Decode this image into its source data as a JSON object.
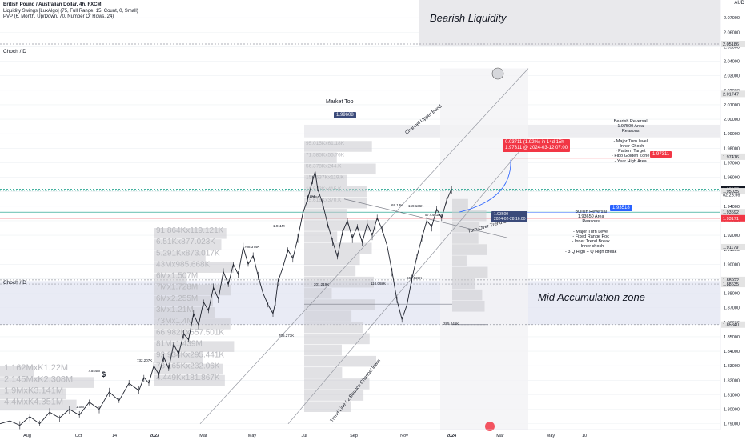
{
  "header": {
    "title": "British Pound / Australian Dollar, 4h, FXCM",
    "indicator_1": "Liquidity Swings [LuxAlgo] (75, Full Range, 15, Count, 0, Small)",
    "indicator_2": "PVP (6, Month, Up/Down, 70, Number Of Rows, 24)"
  },
  "currency": "AUD",
  "annotations": {
    "bearish_liquidity": "Bearish Liquidity",
    "mid_accumulation": "Mid Accumulation zone",
    "choch_top": "Choch / D",
    "choch_mid": "Choch / D",
    "market_top": "Market Top",
    "market_top_tag": "1.99608",
    "channel_upper": "Channel Upper Bond",
    "trend_over": "Turn-Over Trend Line",
    "trend_lower": "Trend Line / 2 Bounce Channel lower",
    "dollar": "$",
    "measure_line1": "0.03711 (1.92%) in 14d 15h",
    "measure_line2": "1.97311 @ 2024-03-12 07:00",
    "bearish_reversal": "Bearish Reversal\n1.97500 Area\nReasons\n\n- Major Turn level\n- Inner Choch\n- Pattern Target\n- Fibo Golden Zone\n- Year High Area",
    "bearish_tag": "1.97311",
    "bullish_reversal": "Bullish Reversal\n1.93650 Area\nReasons\n\n- Major Turn Level\n- Fixed Range Poc\n- Inner Trend Break\n- Inner choch\n- 3 Q High + Q High Break",
    "bullish_tag": "1.93518",
    "entry_tag_1": "1.93600",
    "entry_tag_2": "2024-02-28 16:00"
  },
  "colors": {
    "grid": "#eef0f3",
    "candle": "#1e222d",
    "channel": "#9598a1",
    "bearish_zone": "#e9e9ec",
    "accum_zone": "#e3e6f3",
    "volume_profile": "#c8c9ce",
    "red": "#f23645",
    "blue": "#2962ff",
    "navy": "#3a4a7a",
    "green": "#089981"
  },
  "chart_data": {
    "type": "line",
    "title": "British Pound / Australian Dollar, 4h, FXCM",
    "y_axis_range": [
      1.786,
      2.08
    ],
    "y_ticks": [
      "2.07000",
      "2.06000",
      "2.05000",
      "2.04000",
      "2.03000",
      "2.02000",
      "2.01000",
      "2.00000",
      "1.99000",
      "1.98000",
      "1.97000",
      "1.96000",
      "1.95000",
      "1.94000",
      "1.93000",
      "1.92000",
      "1.91000",
      "1.90000",
      "1.89000",
      "1.88000",
      "1.87000",
      "1.86000",
      "1.85000",
      "1.84000",
      "1.83000",
      "1.82000",
      "1.81000",
      "1.80000",
      "1.79000"
    ],
    "y_tick_values": [
      2.07,
      2.06,
      2.05,
      2.04,
      2.03,
      2.02,
      2.01,
      2.0,
      1.99,
      1.98,
      1.97,
      1.96,
      1.95,
      1.94,
      1.93,
      1.92,
      1.91,
      1.9,
      1.89,
      1.88,
      1.87,
      1.86,
      1.85,
      1.84,
      1.83,
      1.82,
      1.81,
      1.8,
      1.79
    ],
    "x_ticks": [
      "Aug",
      "Oct",
      "14",
      "2023",
      "Mar",
      "May",
      "Jul",
      "Sep",
      "Nov",
      "2024",
      "Mar",
      "May",
      "10"
    ],
    "price_labels": [
      {
        "text": "2.05186",
        "value": 2.05186,
        "color": "#e3e3e3",
        "fg": "#131722"
      },
      {
        "text": "2.01747",
        "value": 2.01747,
        "color": "#e3e3e3",
        "fg": "#131722"
      },
      {
        "text": "1.97416",
        "value": 1.97416,
        "color": "#e3e3e3",
        "fg": "#131722"
      },
      {
        "text": "1.95177",
        "value": 1.95177,
        "color": "#131722",
        "fg": "#ffffff"
      },
      {
        "text": "1.95035",
        "value": 1.95035,
        "color": "#e3e3e3",
        "fg": "#131722"
      },
      {
        "text": "1.93592",
        "value": 1.93592,
        "color": "#e3e3e3",
        "fg": "#131722"
      },
      {
        "text": "1.93171",
        "value": 1.93171,
        "color": "#f23645",
        "fg": "#ffffff"
      },
      {
        "text": "1.91179",
        "value": 1.91179,
        "color": "#e3e3e3",
        "fg": "#131722"
      },
      {
        "text": "1.88922",
        "value": 1.88922,
        "color": "#e3e3e3",
        "fg": "#131722"
      },
      {
        "text": "1.88635",
        "value": 1.88635,
        "color": "#e3e3e3",
        "fg": "#131722"
      },
      {
        "text": "1.85840",
        "value": 1.8584,
        "color": "#e3e3e3",
        "fg": "#131722"
      }
    ],
    "timer": "02:23:56",
    "price_series": [
      [
        0.0,
        1.79
      ],
      [
        0.02,
        1.792
      ],
      [
        0.04,
        1.789
      ],
      [
        0.06,
        1.795
      ],
      [
        0.08,
        1.79
      ],
      [
        0.1,
        1.798
      ],
      [
        0.12,
        1.794
      ],
      [
        0.14,
        1.8
      ],
      [
        0.16,
        1.796
      ],
      [
        0.18,
        1.805
      ],
      [
        0.2,
        1.8
      ],
      [
        0.22,
        1.812
      ],
      [
        0.24,
        1.806
      ],
      [
        0.26,
        1.818
      ],
      [
        0.28,
        1.813
      ],
      [
        0.29,
        1.822
      ],
      [
        0.3,
        1.818
      ],
      [
        0.31,
        1.83
      ],
      [
        0.32,
        1.824
      ],
      [
        0.33,
        1.836
      ],
      [
        0.34,
        1.828
      ],
      [
        0.35,
        1.845
      ],
      [
        0.36,
        1.838
      ],
      [
        0.37,
        1.852
      ],
      [
        0.38,
        1.848
      ],
      [
        0.39,
        1.866
      ],
      [
        0.4,
        1.858
      ],
      [
        0.41,
        1.874
      ],
      [
        0.42,
        1.868
      ],
      [
        0.43,
        1.884
      ],
      [
        0.44,
        1.876
      ],
      [
        0.45,
        1.895
      ],
      [
        0.46,
        1.886
      ],
      [
        0.47,
        1.9
      ],
      [
        0.48,
        1.893
      ],
      [
        0.49,
        1.912
      ],
      [
        0.5,
        1.9
      ],
      [
        0.51,
        1.906
      ],
      [
        0.52,
        1.892
      ],
      [
        0.53,
        1.88
      ],
      [
        0.54,
        1.872
      ],
      [
        0.55,
        1.866
      ],
      [
        0.555,
        1.874
      ],
      [
        0.56,
        1.888
      ],
      [
        0.57,
        1.898
      ],
      [
        0.58,
        1.91
      ],
      [
        0.59,
        1.904
      ],
      [
        0.6,
        1.918
      ],
      [
        0.61,
        1.935
      ],
      [
        0.62,
        1.945
      ],
      [
        0.63,
        1.958
      ],
      [
        0.635,
        1.964
      ],
      [
        0.64,
        1.952
      ],
      [
        0.65,
        1.942
      ],
      [
        0.66,
        1.928
      ],
      [
        0.67,
        1.916
      ],
      [
        0.68,
        1.905
      ],
      [
        0.69,
        1.922
      ],
      [
        0.7,
        1.93
      ],
      [
        0.71,
        1.918
      ],
      [
        0.72,
        1.926
      ],
      [
        0.73,
        1.915
      ],
      [
        0.74,
        1.928
      ],
      [
        0.75,
        1.92
      ],
      [
        0.76,
        1.932
      ],
      [
        0.77,
        1.924
      ],
      [
        0.78,
        1.913
      ],
      [
        0.79,
        1.895
      ],
      [
        0.8,
        1.875
      ],
      [
        0.81,
        1.862
      ],
      [
        0.82,
        1.872
      ],
      [
        0.83,
        1.89
      ],
      [
        0.84,
        1.905
      ],
      [
        0.85,
        1.918
      ],
      [
        0.86,
        1.93
      ],
      [
        0.87,
        1.926
      ],
      [
        0.88,
        1.938
      ],
      [
        0.89,
        1.932
      ],
      [
        0.9,
        1.944
      ],
      [
        0.91,
        1.952
      ]
    ],
    "volume_profile_labels": [
      "1.162MxK1.22M",
      "2.145MxK2.308M",
      "1.9MxK3.141M",
      "4.4MxK4.351M",
      "91.864Kx119.121K",
      "6.51Kx877.023K",
      "5.291Kx873.017K",
      "43Mx985.668K",
      "6Mx1.507M",
      "7Mx1.728M",
      "6Mx2.255M",
      "3Mx1.21M",
      "73Mx1.4M",
      "66.982Kx657.501K",
      "81Mx1.439M",
      "92.934Kx295.441K",
      "73.165Kx232.06K",
      "4.449Kx181.867K",
      "95.015Kx61.18K",
      "71.585Kx55.76K",
      "56.378Kx244.K",
      "158.637Kx119.K",
      "10.533Kx415.K",
      "75.618Kx370.K"
    ],
    "swing_labels": [
      "1.0M",
      "7.544M",
      "732.207K",
      "708.374K",
      "1.911M",
      "706.273K",
      "1.909M",
      "201.219K",
      "1.3M",
      "69.13K",
      "169.136K",
      "577.461K",
      "667.523K",
      "110.068K",
      "285.246K",
      "1.392M"
    ]
  }
}
